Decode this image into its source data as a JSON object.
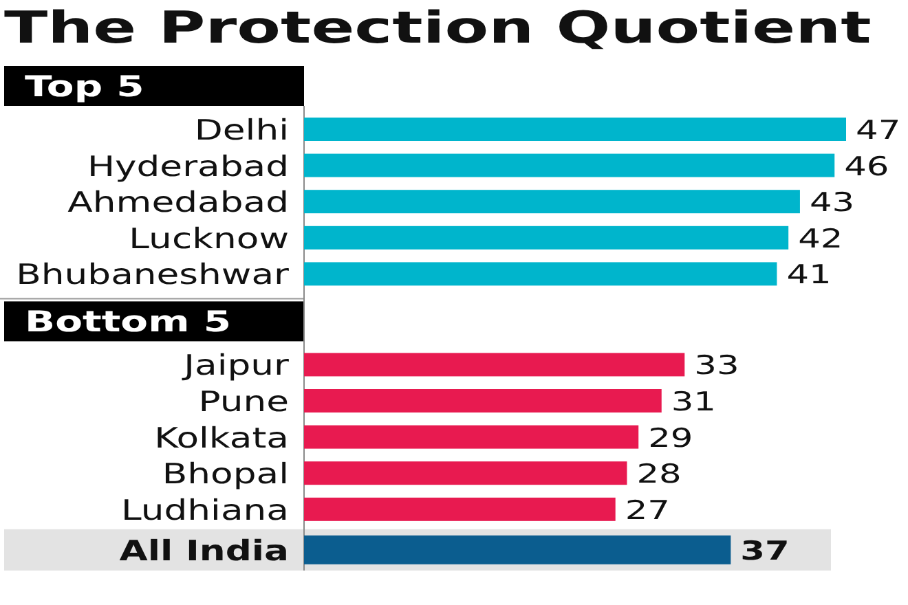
{
  "chart_data": {
    "type": "bar",
    "orientation": "horizontal",
    "title": "The Protection Quotient",
    "annotations": [
      "Top 5",
      "Bottom 5"
    ],
    "categories": [
      "Delhi",
      "Hyderabad",
      "Ahmedabad",
      "Lucknow",
      "Bhubaneshwar",
      "Jaipur",
      "Pune",
      "Kolkata",
      "Bhopal",
      "Ludhiana",
      "All India"
    ],
    "values": [
      47,
      46,
      43,
      42,
      41,
      33,
      31,
      29,
      28,
      27,
      37
    ],
    "colors": [
      "#00b5cc",
      "#00b5cc",
      "#00b5cc",
      "#00b5cc",
      "#00b5cc",
      "#e81a50",
      "#e81a50",
      "#e81a50",
      "#e81a50",
      "#e81a50",
      "#0b5d8f"
    ],
    "data_labels": true,
    "bands": [
      {
        "axis": "y",
        "from": "All India",
        "to": "All India",
        "color": "#e3e3e3"
      }
    ]
  }
}
